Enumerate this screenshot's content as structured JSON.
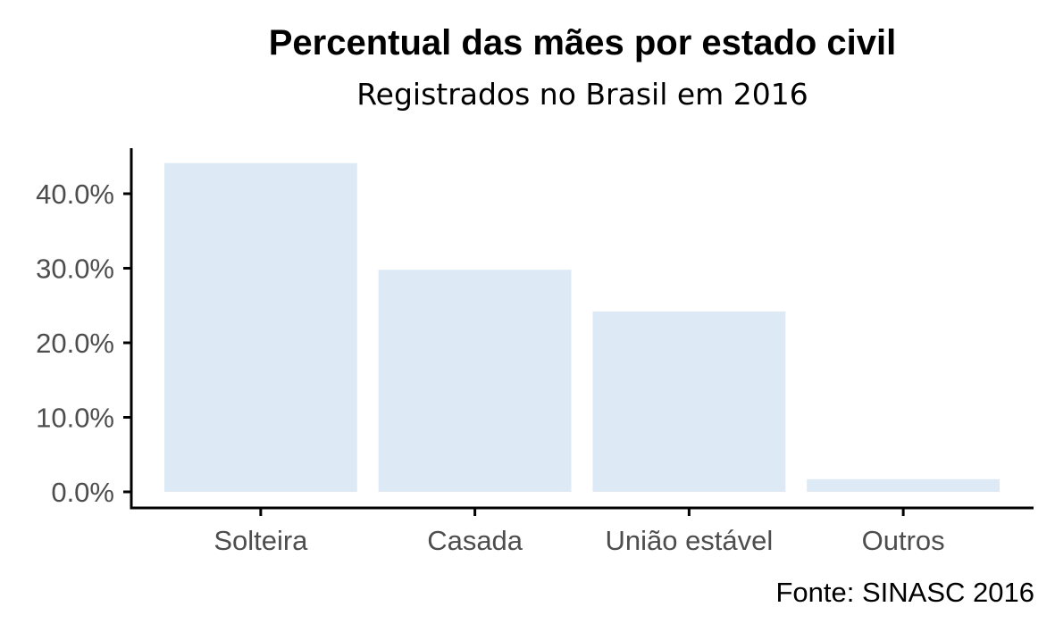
{
  "chart_data": {
    "type": "bar",
    "title": "Percentual das mães por estado civil",
    "subtitle": "Registrados no Brasil em 2016",
    "caption": "Fonte: SINASC 2016",
    "categories": [
      "Solteira",
      "Casada",
      "União estável",
      "Outros"
    ],
    "values": [
      44.1,
      29.8,
      24.2,
      1.7
    ],
    "ylim": [
      0,
      46.1
    ],
    "yticks": [
      0,
      10,
      20,
      30,
      40
    ],
    "ytick_labels": [
      "0.0%",
      "10.0%",
      "20.0%",
      "30.0%",
      "40.0%"
    ],
    "xlabel": "",
    "ylabel": "",
    "grid": false,
    "legend": "none",
    "bar_color": "#dde9f4",
    "axis_color": "#000000",
    "tick_label_color": "#4d4d4d"
  }
}
